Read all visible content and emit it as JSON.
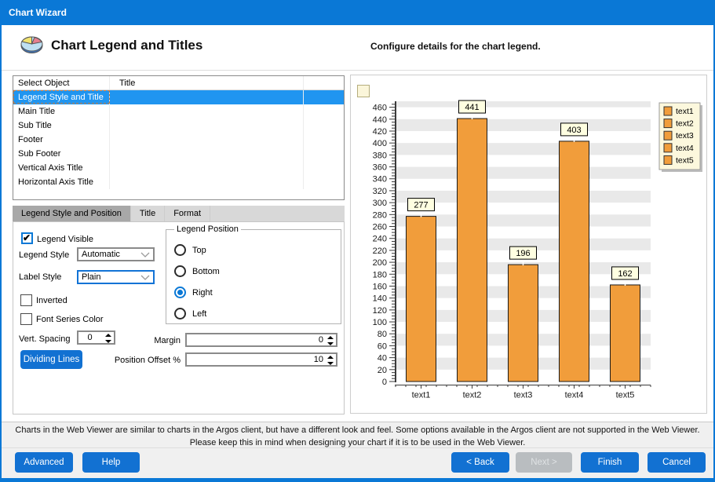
{
  "window": {
    "title": "Chart Wizard"
  },
  "header": {
    "title": "Chart Legend and Titles",
    "subtitle": "Configure details for the chart legend."
  },
  "object_list": {
    "columns": {
      "col1": "Select Object",
      "col2": "Title"
    },
    "rows": [
      {
        "name": "Legend Style and Title",
        "title": "",
        "selected": true
      },
      {
        "name": "Main Title",
        "title": ""
      },
      {
        "name": "Sub Title",
        "title": ""
      },
      {
        "name": "Footer",
        "title": ""
      },
      {
        "name": "Sub Footer",
        "title": ""
      },
      {
        "name": "Vertical Axis Title",
        "title": ""
      },
      {
        "name": "Horizontal Axis Title",
        "title": ""
      }
    ]
  },
  "tabs": [
    {
      "label": "Legend Style and Position",
      "active": true
    },
    {
      "label": "Title",
      "active": false
    },
    {
      "label": "Format",
      "active": false
    }
  ],
  "form": {
    "legend_visible": {
      "label": "Legend Visible",
      "checked": true
    },
    "legend_style": {
      "label": "Legend Style",
      "value": "Automatic"
    },
    "label_style": {
      "label": "Label Style",
      "value": "Plain"
    },
    "inverted": {
      "label": "Inverted",
      "checked": false
    },
    "font_series_color": {
      "label": "Font Series Color",
      "checked": false
    },
    "vert_spacing": {
      "label": "Vert. Spacing",
      "value": "0"
    },
    "dividing_lines_label": "Dividing Lines",
    "legend_position": {
      "label": "Legend Position",
      "options": [
        "Top",
        "Bottom",
        "Right",
        "Left"
      ],
      "selected": "Right"
    },
    "margin": {
      "label": "Margin",
      "value": "0"
    },
    "position_offset": {
      "label": "Position Offset %",
      "value": "10"
    }
  },
  "chart_data": {
    "type": "bar",
    "categories": [
      "text1",
      "text2",
      "text3",
      "text4",
      "text5"
    ],
    "values": [
      277,
      441,
      196,
      403,
      162
    ],
    "title": "",
    "xlabel": "",
    "ylabel": "",
    "ylim": [
      0,
      470
    ],
    "ytick_step": 20,
    "grid": "alternating horizontal stripes",
    "value_labels": true,
    "legend_entries": [
      "text1",
      "text2",
      "text3",
      "text4",
      "text5"
    ],
    "legend_position": "right",
    "bar_color": "#f19d3b",
    "bar_border": "#1a1a1a",
    "stripe_color": "#e9e9e9",
    "label_box_bg": "#ffffe1",
    "legend_bg": "#fcf8dd"
  },
  "note": {
    "line1": "Charts in the Web Viewer are similar to charts in the Argos client, but have a different look and feel. Some options available in the Argos client are not supported in the Web Viewer.",
    "line2": "Please keep this in mind when designing your chart if it is to be used in the Web Viewer."
  },
  "buttons": {
    "advanced": "Advanced",
    "help": "Help",
    "back": "< Back",
    "next": {
      "label": "Next >",
      "enabled": false
    },
    "finish": "Finish",
    "cancel": "Cancel"
  },
  "colors": {
    "accent_blue": "#0a78d6",
    "button_blue": "#1271d2",
    "selected_row": "#2095f0",
    "active_tab": "#a8a8a8"
  }
}
